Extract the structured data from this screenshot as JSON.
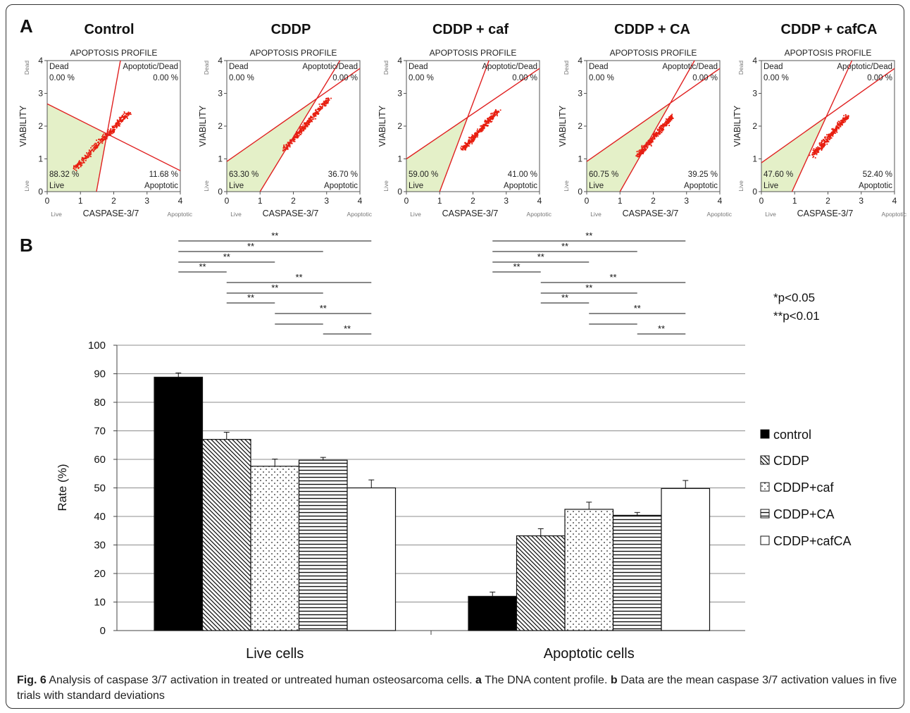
{
  "panel_a": {
    "letter": "A",
    "plots": [
      {
        "title": "Control",
        "live_pct": "88.32 %",
        "apoptotic_pct": "11.68 %",
        "dead_pct": "0.00 %",
        "apodead_pct": "0.00 %"
      },
      {
        "title": "CDDP",
        "live_pct": "63.30 %",
        "apoptotic_pct": "36.70 %",
        "dead_pct": "0.00 %",
        "apodead_pct": "0.00 %"
      },
      {
        "title": "CDDP + caf",
        "live_pct": "59.00 %",
        "apoptotic_pct": "41.00 %",
        "dead_pct": "0.00 %",
        "apodead_pct": "0.00 %"
      },
      {
        "title": "CDDP + CA",
        "live_pct": "60.75 %",
        "apoptotic_pct": "39.25 %",
        "dead_pct": "0.00 %",
        "apodead_pct": "0.00 %"
      },
      {
        "title": "CDDP + cafCA",
        "live_pct": "47.60 %",
        "apoptotic_pct": "52.40 %",
        "dead_pct": "0.00 %",
        "apodead_pct": "0.00 %"
      }
    ],
    "common": {
      "plot_title": "APOPTOSIS PROFILE",
      "xlabel": "CASPASE-3/7",
      "ylabel": "VIABILITY",
      "q_dead": "Dead",
      "q_apodead": "Apoptotic/Dead",
      "q_live": "Live",
      "q_apoptotic": "Apoptotic",
      "corner_live": "Live",
      "corner_apoptotic": "Apoptotic",
      "side_dead": "Dead",
      "side_live": "Live",
      "ticks": [
        "0",
        "1",
        "2",
        "3",
        "4"
      ]
    }
  },
  "panel_b": {
    "letter": "B",
    "p_notes": [
      "*p<0.05",
      "**p<0.01"
    ],
    "sig_label": "**"
  },
  "chart_data": {
    "type": "bar",
    "categories": [
      "Live cells",
      "Apoptotic cells"
    ],
    "ylabel": "Rate (%)",
    "ylim": [
      0,
      100
    ],
    "yticks": [
      0,
      10,
      20,
      30,
      40,
      50,
      60,
      70,
      80,
      90,
      100
    ],
    "grid": true,
    "legend_position": "right",
    "series": [
      {
        "name": "control",
        "values": [
          88.8,
          12.0
        ],
        "errors": [
          1.5,
          1.5
        ],
        "pattern": "solid-black"
      },
      {
        "name": "CDDP",
        "values": [
          67.0,
          33.2
        ],
        "errors": [
          2.5,
          2.5
        ],
        "pattern": "diagonal"
      },
      {
        "name": "CDDP+caf",
        "values": [
          57.6,
          42.5
        ],
        "errors": [
          2.5,
          2.5
        ],
        "pattern": "dots"
      },
      {
        "name": "CDDP+CA",
        "values": [
          59.7,
          40.4
        ],
        "errors": [
          1.0,
          1.0
        ],
        "pattern": "horizontal"
      },
      {
        "name": "CDDP+cafCA",
        "values": [
          50.0,
          49.8
        ],
        "errors": [
          2.8,
          2.8
        ],
        "pattern": "white"
      }
    ]
  },
  "caption": {
    "fig_label": "Fig. 6",
    "text1": " Analysis of caspase 3/7 activation in treated or untreated human osteosarcoma cells. ",
    "a_label": "a",
    "text2": " The DNA content profile. ",
    "b_label": "b",
    "text3": " Data are the mean caspase 3/7 activation values in five trials with standard deviations"
  },
  "colors": {
    "dot": "#e81e10",
    "line": "#e02020",
    "live_fill": "#e4f0c8",
    "frame": "#333333"
  }
}
